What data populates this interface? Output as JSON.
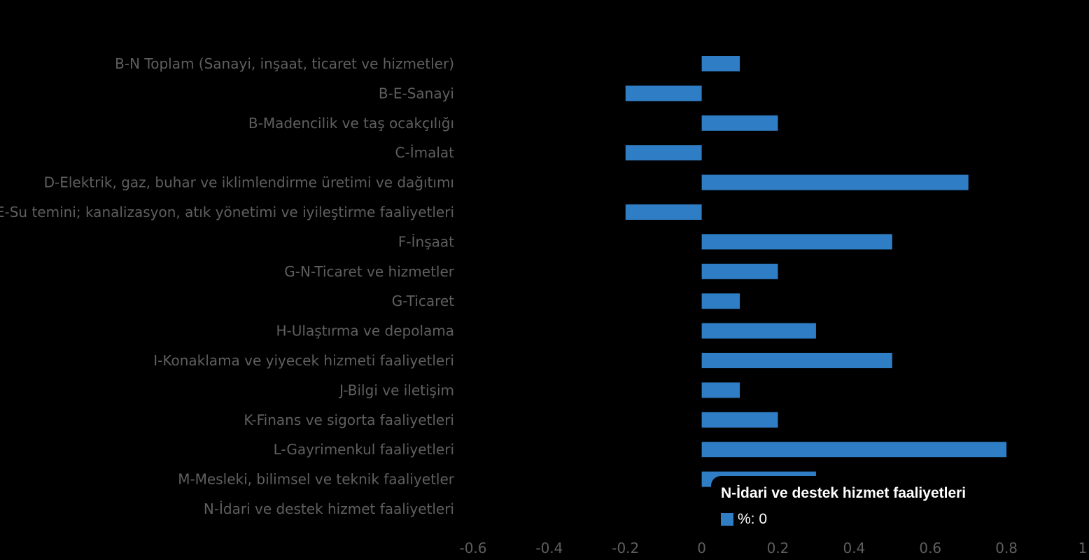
{
  "chart_data": {
    "type": "bar",
    "orientation": "horizontal",
    "categories": [
      "B-N Toplam (Sanayi, inşaat, ticaret ve hizmetler)",
      "B-E-Sanayi",
      "B-Madencilik ve taş ocakçılığı",
      "C-İmalat",
      "D-Elektrik, gaz, buhar ve iklimlendirme üretimi ve dağıtımı",
      "E-Su temini; kanalizasyon, atık yönetimi ve iyileştirme faaliyetleri",
      "F-İnşaat",
      "G-N-Ticaret ve hizmetler",
      "G-Ticaret",
      "H-Ulaştırma ve depolama",
      "I-Konaklama ve yiyecek hizmeti faaliyetleri",
      "J-Bilgi ve iletişim",
      "K-Finans ve sigorta faaliyetleri",
      "L-Gayrimenkul faaliyetleri",
      "M-Mesleki, bilimsel ve teknik faaliyetler",
      "N-İdari ve destek hizmet faaliyetleri"
    ],
    "series": [
      {
        "name": "%",
        "values": [
          0.1,
          -0.2,
          0.2,
          -0.2,
          0.7,
          -0.2,
          0.5,
          0.2,
          0.1,
          0.3,
          0.5,
          0.1,
          0.2,
          0.8,
          0.3,
          0
        ]
      }
    ],
    "xlim": [
      -0.6,
      1
    ],
    "xticks": [
      "-0.6",
      "-0.4",
      "-0.2",
      "0",
      "0.2",
      "0.4",
      "0.6",
      "0.8",
      "1"
    ],
    "grid": false,
    "colors": {
      "background": "#000000",
      "bar": "#2f7dc4",
      "label": "#5f5f5f"
    }
  },
  "tooltip": {
    "title": "N-İdari ve destek hizmet faaliyetleri",
    "series_label": "%",
    "value_text": "0",
    "text": "%: 0",
    "color": "#2f7dc4"
  }
}
